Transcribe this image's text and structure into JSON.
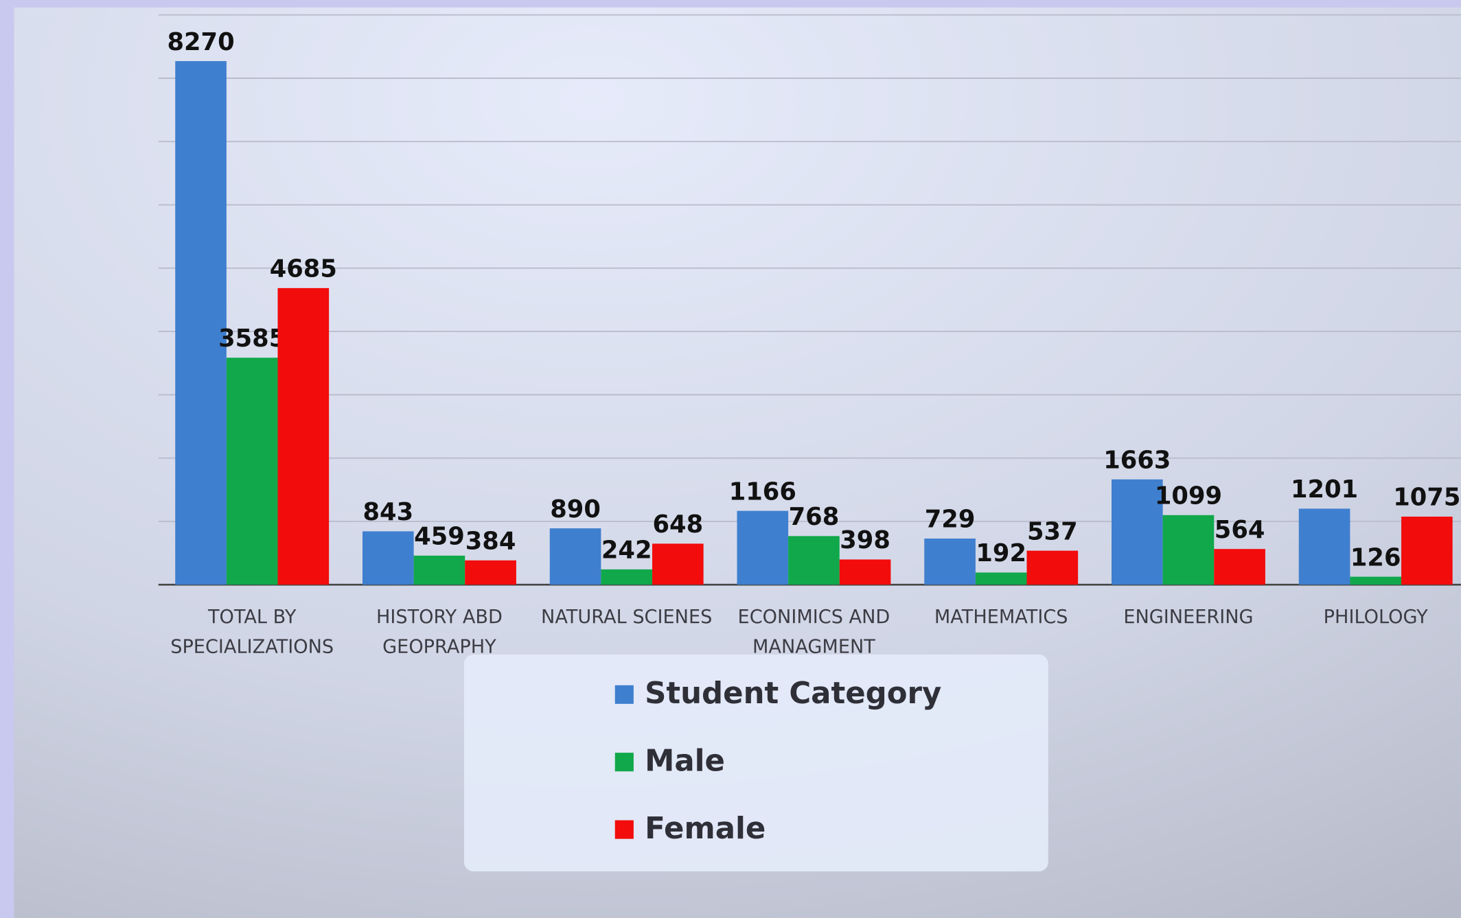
{
  "chart_data": {
    "type": "bar",
    "categories": [
      "TOTAL BY SPECIALIZATIONS",
      "HISTORY ABD GEOPRAPHY",
      "NATURAL SCIENES",
      "ECONIMICS AND MANAGMENT",
      "MATHEMATICS",
      "ENGINEERING",
      "PHILOLOGY"
    ],
    "series": [
      {
        "name": "Student Category",
        "color": "#3f7fcf",
        "values": [
          8270,
          843,
          890,
          1166,
          729,
          1663,
          1201
        ]
      },
      {
        "name": "Male",
        "color": "#10a84a",
        "values": [
          3585,
          459,
          242,
          768,
          192,
          1099,
          126
        ]
      },
      {
        "name": "Female",
        "color": "#f20c0c",
        "values": [
          4685,
          384,
          648,
          398,
          537,
          564,
          1075
        ]
      }
    ],
    "ylim": [
      0,
      9000
    ],
    "yticks": [
      0,
      1000,
      2000,
      3000,
      4000,
      5000,
      6000,
      7000,
      8000,
      9000
    ],
    "grid": true
  }
}
